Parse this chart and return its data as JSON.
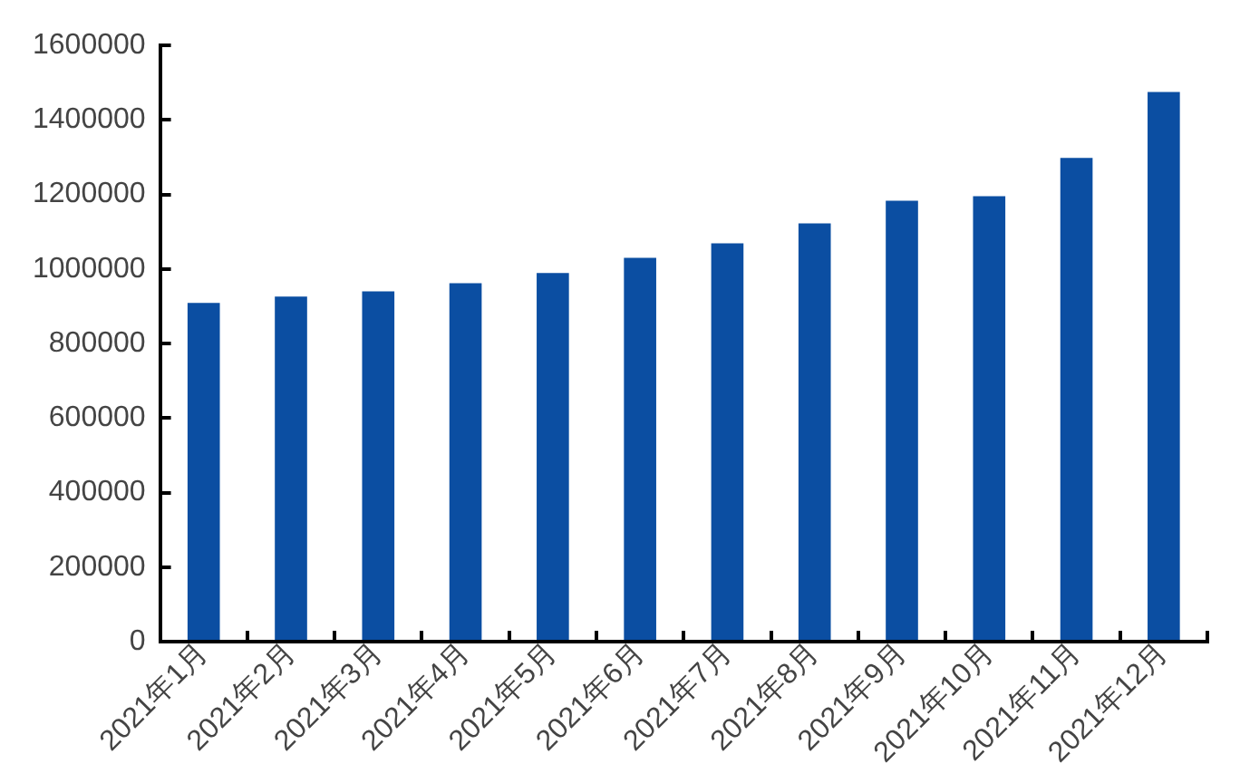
{
  "chart_data": {
    "type": "bar",
    "categories": [
      "2021年1月",
      "2021年2月",
      "2021年3月",
      "2021年4月",
      "2021年5月",
      "2021年6月",
      "2021年7月",
      "2021年8月",
      "2021年9月",
      "2021年10月",
      "2021年11月",
      "2021年12月"
    ],
    "values": [
      909000,
      926000,
      940000,
      962000,
      989000,
      1030000,
      1069000,
      1122000,
      1183000,
      1195000,
      1298000,
      1475000
    ],
    "color": "#0b4ea2",
    "ylim": [
      0,
      1600000
    ],
    "yticks": [
      0,
      200000,
      400000,
      600000,
      800000,
      1000000,
      1200000,
      1400000,
      1600000
    ],
    "grid": false,
    "legend": false
  }
}
